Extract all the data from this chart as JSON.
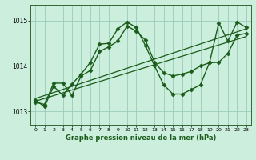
{
  "background_color": "#cceedd",
  "grid_color": "#99ccbb",
  "line_color": "#1a5c1a",
  "title": "Graphe pression niveau de la mer (hPa)",
  "xlim": [
    -0.5,
    23.5
  ],
  "ylim": [
    1012.7,
    1015.35
  ],
  "yticks": [
    1013,
    1014,
    1015
  ],
  "xticks": [
    0,
    1,
    2,
    3,
    4,
    5,
    6,
    7,
    8,
    9,
    10,
    11,
    12,
    13,
    14,
    15,
    16,
    17,
    18,
    19,
    20,
    21,
    22,
    23
  ],
  "series": [
    {
      "x": [
        0,
        1,
        2,
        3,
        4,
        5,
        6,
        7,
        8,
        9,
        10,
        11,
        12,
        13,
        14,
        15,
        16,
        17,
        18,
        19,
        20,
        21,
        22,
        23
      ],
      "y": [
        1013.25,
        1013.1,
        1013.55,
        1013.35,
        1013.6,
        1013.82,
        1014.08,
        1014.48,
        1014.5,
        1014.82,
        1014.97,
        1014.85,
        1014.45,
        1014.0,
        1013.58,
        1013.38,
        1013.38,
        1013.48,
        1013.58,
        1014.08,
        1014.95,
        1014.55,
        1014.97,
        1014.85
      ],
      "marker": "D",
      "markersize": 2.5,
      "linewidth": 1.0
    },
    {
      "x": [
        0,
        1,
        2,
        3,
        4,
        5,
        6,
        7,
        8,
        9,
        10,
        11,
        12,
        13,
        14,
        15,
        16,
        17,
        18,
        19,
        20,
        21,
        22,
        23
      ],
      "y": [
        1013.2,
        1013.15,
        1013.62,
        1013.62,
        1013.35,
        1013.78,
        1013.9,
        1014.32,
        1014.42,
        1014.55,
        1014.88,
        1014.77,
        1014.57,
        1014.08,
        1013.85,
        1013.78,
        1013.82,
        1013.88,
        1014.0,
        1014.07,
        1014.08,
        1014.28,
        1014.68,
        1014.72
      ],
      "marker": "D",
      "markersize": 2.5,
      "linewidth": 1.0
    },
    {
      "x": [
        0,
        23
      ],
      "y": [
        1013.28,
        1014.82
      ],
      "marker": null,
      "markersize": 0,
      "linewidth": 0.9
    },
    {
      "x": [
        0,
        23
      ],
      "y": [
        1013.22,
        1014.65
      ],
      "marker": null,
      "markersize": 0,
      "linewidth": 0.9
    }
  ]
}
